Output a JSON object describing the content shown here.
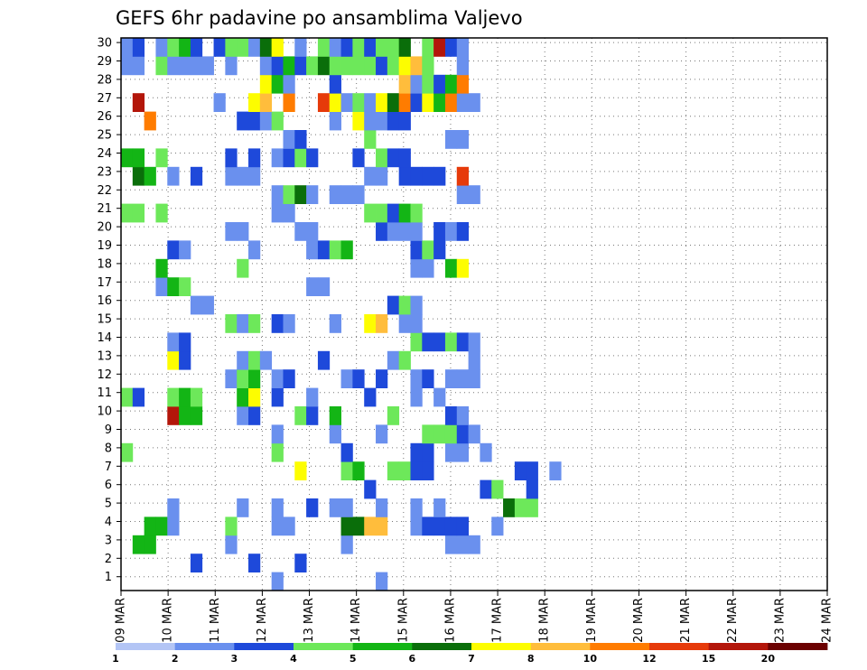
{
  "chart_data": {
    "type": "heatmap",
    "title": "GEFS 6hr padavine po ansamblima Valjevo",
    "y_labels": [
      "1",
      "2",
      "3",
      "4",
      "5",
      "6",
      "7",
      "8",
      "9",
      "10",
      "11",
      "12",
      "13",
      "14",
      "15",
      "16",
      "17",
      "18",
      "19",
      "20",
      "21",
      "22",
      "23",
      "24",
      "25",
      "26",
      "27",
      "28",
      "29",
      "30"
    ],
    "x_labels": [
      "09 MAR",
      "10 MAR",
      "11 MAR",
      "12 MAR",
      "13 MAR",
      "14 MAR",
      "15 MAR",
      "16 MAR",
      "17 MAR",
      "18 MAR",
      "19 MAR",
      "20 MAR",
      "21 MAR",
      "22 MAR",
      "23 MAR",
      "24 MAR"
    ],
    "x_range_days": [
      0,
      15
    ],
    "grid": true,
    "legend": {
      "position": "bottom",
      "labels": [
        "1",
        "2",
        "3",
        "4",
        "5",
        "6",
        "7",
        "8",
        "10",
        "12",
        "15",
        "20"
      ],
      "colors": [
        "#b3c5f5",
        "#6a90ee",
        "#1e49da",
        "#6de85a",
        "#13b515",
        "#0a6e0a",
        "#fdfd00",
        "#ffbd3c",
        "#ff7c00",
        "#e63a0a",
        "#b3160a",
        "#6b0000"
      ]
    },
    "cells": [
      [
        2,
        1,
        4
      ],
      [
        2,
        2,
        4
      ],
      [
        3,
        2,
        4
      ],
      [
        3,
        3,
        4
      ],
      [
        0,
        13,
        1
      ],
      [
        0,
        22,
        1
      ],
      [
        1,
        6,
        2
      ],
      [
        1,
        11,
        2
      ],
      [
        1,
        15,
        2
      ],
      [
        2,
        9,
        1
      ],
      [
        2,
        19,
        1
      ],
      [
        2,
        28,
        1
      ],
      [
        2,
        29,
        1
      ],
      [
        2,
        30,
        1
      ],
      [
        3,
        4,
        1
      ],
      [
        3,
        9,
        3
      ],
      [
        3,
        13,
        1
      ],
      [
        3,
        14,
        1
      ],
      [
        3,
        19,
        5
      ],
      [
        3,
        20,
        5
      ],
      [
        3,
        21,
        7
      ],
      [
        3,
        22,
        7
      ],
      [
        3,
        25,
        1
      ],
      [
        3,
        26,
        2
      ],
      [
        3,
        27,
        2
      ],
      [
        3,
        28,
        2
      ],
      [
        3,
        29,
        2
      ],
      [
        3,
        32,
        1
      ],
      [
        4,
        4,
        1
      ],
      [
        4,
        10,
        1
      ],
      [
        4,
        13,
        1
      ],
      [
        4,
        16,
        2
      ],
      [
        4,
        18,
        1
      ],
      [
        4,
        19,
        1
      ],
      [
        4,
        22,
        1
      ],
      [
        4,
        25,
        1
      ],
      [
        4,
        27,
        1
      ],
      [
        4,
        33,
        5
      ],
      [
        4,
        34,
        3
      ],
      [
        4,
        35,
        3
      ],
      [
        5,
        21,
        2
      ],
      [
        5,
        31,
        2
      ],
      [
        5,
        32,
        3
      ],
      [
        5,
        35,
        2
      ],
      [
        6,
        15,
        6
      ],
      [
        6,
        19,
        3
      ],
      [
        6,
        20,
        4
      ],
      [
        6,
        23,
        3
      ],
      [
        6,
        24,
        3
      ],
      [
        6,
        25,
        2
      ],
      [
        6,
        26,
        2
      ],
      [
        6,
        34,
        2
      ],
      [
        6,
        35,
        2
      ],
      [
        6,
        37,
        1
      ],
      [
        7,
        0,
        3
      ],
      [
        7,
        13,
        3
      ],
      [
        7,
        19,
        2
      ],
      [
        7,
        25,
        2
      ],
      [
        7,
        26,
        2
      ],
      [
        7,
        28,
        1
      ],
      [
        7,
        29,
        1
      ],
      [
        7,
        31,
        1
      ],
      [
        8,
        13,
        1
      ],
      [
        8,
        18,
        1
      ],
      [
        8,
        22,
        1
      ],
      [
        8,
        26,
        3
      ],
      [
        8,
        27,
        3
      ],
      [
        8,
        28,
        3
      ],
      [
        8,
        29,
        2
      ],
      [
        8,
        30,
        1
      ],
      [
        9,
        4,
        10
      ],
      [
        9,
        5,
        4
      ],
      [
        9,
        6,
        4
      ],
      [
        9,
        10,
        1
      ],
      [
        9,
        11,
        2
      ],
      [
        9,
        15,
        3
      ],
      [
        9,
        16,
        2
      ],
      [
        9,
        18,
        4
      ],
      [
        9,
        23,
        3
      ],
      [
        9,
        28,
        2
      ],
      [
        9,
        29,
        1
      ],
      [
        10,
        0,
        3
      ],
      [
        10,
        1,
        2
      ],
      [
        10,
        4,
        3
      ],
      [
        10,
        5,
        4
      ],
      [
        10,
        6,
        3
      ],
      [
        10,
        10,
        4
      ],
      [
        10,
        11,
        6
      ],
      [
        10,
        13,
        2
      ],
      [
        10,
        16,
        1
      ],
      [
        10,
        21,
        2
      ],
      [
        10,
        25,
        1
      ],
      [
        10,
        27,
        1
      ],
      [
        11,
        9,
        1
      ],
      [
        11,
        10,
        3
      ],
      [
        11,
        11,
        4
      ],
      [
        11,
        13,
        1
      ],
      [
        11,
        14,
        2
      ],
      [
        11,
        19,
        1
      ],
      [
        11,
        20,
        2
      ],
      [
        11,
        22,
        2
      ],
      [
        11,
        25,
        1
      ],
      [
        11,
        26,
        2
      ],
      [
        11,
        28,
        1
      ],
      [
        11,
        29,
        1
      ],
      [
        11,
        30,
        1
      ],
      [
        12,
        4,
        6
      ],
      [
        12,
        5,
        2
      ],
      [
        12,
        10,
        1
      ],
      [
        12,
        11,
        3
      ],
      [
        12,
        12,
        1
      ],
      [
        12,
        17,
        2
      ],
      [
        12,
        23,
        1
      ],
      [
        12,
        24,
        3
      ],
      [
        12,
        30,
        1
      ],
      [
        13,
        4,
        1
      ],
      [
        13,
        5,
        2
      ],
      [
        13,
        25,
        3
      ],
      [
        13,
        26,
        2
      ],
      [
        13,
        27,
        2
      ],
      [
        13,
        28,
        3
      ],
      [
        13,
        29,
        2
      ],
      [
        13,
        30,
        1
      ],
      [
        14,
        9,
        3
      ],
      [
        14,
        10,
        1
      ],
      [
        14,
        11,
        3
      ],
      [
        14,
        13,
        2
      ],
      [
        14,
        14,
        1
      ],
      [
        14,
        18,
        1
      ],
      [
        14,
        21,
        6
      ],
      [
        14,
        22,
        7
      ],
      [
        14,
        24,
        1
      ],
      [
        14,
        25,
        1
      ],
      [
        15,
        6,
        1
      ],
      [
        15,
        7,
        1
      ],
      [
        15,
        23,
        2
      ],
      [
        15,
        24,
        3
      ],
      [
        15,
        25,
        1
      ],
      [
        16,
        3,
        1
      ],
      [
        16,
        4,
        4
      ],
      [
        16,
        5,
        3
      ],
      [
        16,
        16,
        1
      ],
      [
        16,
        17,
        1
      ],
      [
        17,
        3,
        4
      ],
      [
        17,
        10,
        3
      ],
      [
        17,
        25,
        1
      ],
      [
        17,
        26,
        1
      ],
      [
        17,
        28,
        4
      ],
      [
        17,
        29,
        6
      ],
      [
        18,
        4,
        2
      ],
      [
        18,
        5,
        1
      ],
      [
        18,
        11,
        1
      ],
      [
        18,
        16,
        1
      ],
      [
        18,
        17,
        2
      ],
      [
        18,
        18,
        3
      ],
      [
        18,
        19,
        4
      ],
      [
        18,
        25,
        2
      ],
      [
        18,
        26,
        3
      ],
      [
        18,
        27,
        2
      ],
      [
        19,
        9,
        1
      ],
      [
        19,
        10,
        1
      ],
      [
        19,
        15,
        1
      ],
      [
        19,
        16,
        1
      ],
      [
        19,
        22,
        2
      ],
      [
        19,
        23,
        1
      ],
      [
        19,
        24,
        1
      ],
      [
        19,
        25,
        1
      ],
      [
        19,
        27,
        2
      ],
      [
        19,
        28,
        1
      ],
      [
        19,
        29,
        2
      ],
      [
        20,
        0,
        3
      ],
      [
        20,
        1,
        3
      ],
      [
        20,
        3,
        3
      ],
      [
        20,
        13,
        1
      ],
      [
        20,
        14,
        1
      ],
      [
        20,
        21,
        3
      ],
      [
        20,
        22,
        3
      ],
      [
        20,
        23,
        2
      ],
      [
        20,
        24,
        4
      ],
      [
        20,
        25,
        3
      ],
      [
        21,
        13,
        1
      ],
      [
        21,
        14,
        3
      ],
      [
        21,
        15,
        5
      ],
      [
        21,
        16,
        1
      ],
      [
        21,
        18,
        1
      ],
      [
        21,
        19,
        1
      ],
      [
        21,
        20,
        1
      ],
      [
        21,
        29,
        1
      ],
      [
        21,
        30,
        1
      ],
      [
        22,
        1,
        5
      ],
      [
        22,
        2,
        4
      ],
      [
        22,
        4,
        1
      ],
      [
        22,
        6,
        2
      ],
      [
        22,
        9,
        1
      ],
      [
        22,
        10,
        1
      ],
      [
        22,
        11,
        1
      ],
      [
        22,
        21,
        1
      ],
      [
        22,
        22,
        1
      ],
      [
        22,
        24,
        2
      ],
      [
        22,
        25,
        2
      ],
      [
        22,
        26,
        2
      ],
      [
        22,
        27,
        2
      ],
      [
        22,
        29,
        9
      ],
      [
        23,
        0,
        4
      ],
      [
        23,
        1,
        4
      ],
      [
        23,
        3,
        3
      ],
      [
        23,
        9,
        2
      ],
      [
        23,
        11,
        2
      ],
      [
        23,
        13,
        1
      ],
      [
        23,
        14,
        2
      ],
      [
        23,
        15,
        3
      ],
      [
        23,
        16,
        2
      ],
      [
        23,
        20,
        2
      ],
      [
        23,
        22,
        3
      ],
      [
        23,
        23,
        2
      ],
      [
        23,
        24,
        2
      ],
      [
        24,
        14,
        1
      ],
      [
        24,
        15,
        2
      ],
      [
        24,
        21,
        3
      ],
      [
        24,
        28,
        1
      ],
      [
        24,
        29,
        1
      ],
      [
        25,
        2,
        8
      ],
      [
        25,
        10,
        2
      ],
      [
        25,
        11,
        2
      ],
      [
        25,
        12,
        1
      ],
      [
        25,
        13,
        3
      ],
      [
        25,
        18,
        1
      ],
      [
        25,
        20,
        6
      ],
      [
        25,
        21,
        1
      ],
      [
        25,
        22,
        1
      ],
      [
        25,
        23,
        2
      ],
      [
        25,
        24,
        2
      ],
      [
        26,
        1,
        10
      ],
      [
        26,
        8,
        1
      ],
      [
        26,
        11,
        6
      ],
      [
        26,
        12,
        7
      ],
      [
        26,
        14,
        8
      ],
      [
        26,
        17,
        9
      ],
      [
        26,
        18,
        6
      ],
      [
        26,
        19,
        1
      ],
      [
        26,
        20,
        3
      ],
      [
        26,
        21,
        1
      ],
      [
        26,
        22,
        6
      ],
      [
        26,
        23,
        5
      ],
      [
        26,
        24,
        8
      ],
      [
        26,
        25,
        2
      ],
      [
        26,
        26,
        6
      ],
      [
        26,
        27,
        4
      ],
      [
        26,
        28,
        8
      ],
      [
        26,
        29,
        1
      ],
      [
        26,
        30,
        1
      ],
      [
        27,
        12,
        6
      ],
      [
        27,
        13,
        4
      ],
      [
        27,
        14,
        1
      ],
      [
        27,
        18,
        2
      ],
      [
        27,
        24,
        7
      ],
      [
        27,
        25,
        1
      ],
      [
        27,
        26,
        3
      ],
      [
        27,
        27,
        2
      ],
      [
        27,
        28,
        4
      ],
      [
        27,
        29,
        8
      ],
      [
        28,
        0,
        1
      ],
      [
        28,
        1,
        1
      ],
      [
        28,
        3,
        3
      ],
      [
        28,
        4,
        1
      ],
      [
        28,
        5,
        1
      ],
      [
        28,
        6,
        1
      ],
      [
        28,
        7,
        1
      ],
      [
        28,
        9,
        1
      ],
      [
        28,
        12,
        1
      ],
      [
        28,
        13,
        2
      ],
      [
        28,
        14,
        4
      ],
      [
        28,
        15,
        2
      ],
      [
        28,
        16,
        3
      ],
      [
        28,
        17,
        5
      ],
      [
        28,
        18,
        3
      ],
      [
        28,
        19,
        3
      ],
      [
        28,
        20,
        3
      ],
      [
        28,
        21,
        3
      ],
      [
        28,
        22,
        2
      ],
      [
        28,
        23,
        3
      ],
      [
        28,
        24,
        6
      ],
      [
        28,
        25,
        7
      ],
      [
        28,
        26,
        3
      ],
      [
        28,
        29,
        1
      ],
      [
        29,
        0,
        1
      ],
      [
        29,
        1,
        2
      ],
      [
        29,
        3,
        1
      ],
      [
        29,
        4,
        3
      ],
      [
        29,
        5,
        4
      ],
      [
        29,
        6,
        2
      ],
      [
        29,
        8,
        2
      ],
      [
        29,
        9,
        3
      ],
      [
        29,
        10,
        3
      ],
      [
        29,
        11,
        1
      ],
      [
        29,
        12,
        5
      ],
      [
        29,
        13,
        6
      ],
      [
        29,
        15,
        1
      ],
      [
        29,
        17,
        3
      ],
      [
        29,
        18,
        1
      ],
      [
        29,
        19,
        2
      ],
      [
        29,
        20,
        3
      ],
      [
        29,
        21,
        2
      ],
      [
        29,
        22,
        3
      ],
      [
        29,
        23,
        3
      ],
      [
        29,
        24,
        5
      ],
      [
        29,
        26,
        3
      ],
      [
        29,
        27,
        10
      ],
      [
        29,
        28,
        2
      ],
      [
        29,
        29,
        1
      ]
    ]
  }
}
